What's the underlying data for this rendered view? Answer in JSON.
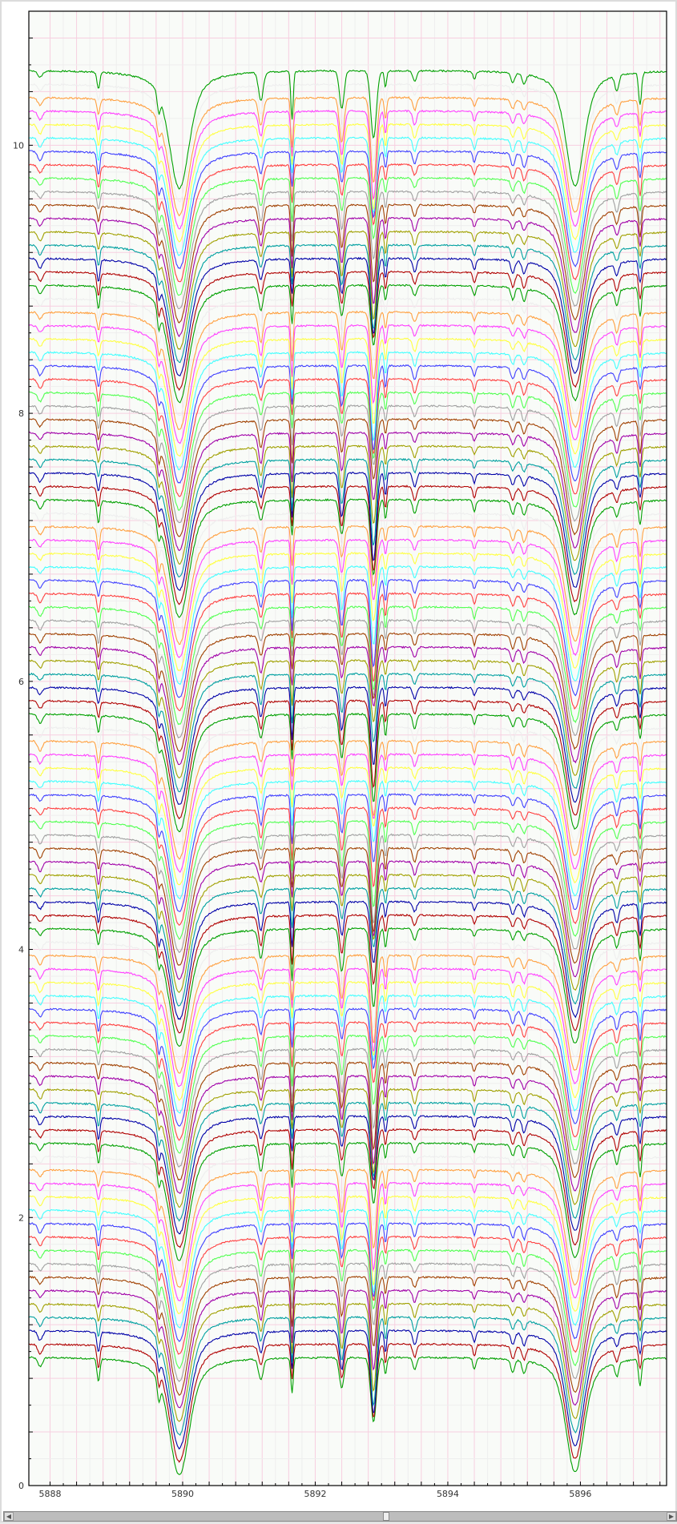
{
  "chart_data": {
    "type": "line",
    "title": "",
    "xlabel": "",
    "ylabel": "",
    "xlim": [
      5887.68,
      5897.3
    ],
    "ylim": [
      0,
      11
    ],
    "x_ticks": [
      "5888",
      "5890",
      "5892",
      "5894",
      "5896"
    ],
    "y_ticks": [
      "0",
      "2",
      "4",
      "6",
      "8",
      "10"
    ],
    "grid": true,
    "legend": "none",
    "series_count": 97,
    "series_offset_start": 0.96,
    "series_offset_step": 0.1,
    "continuum_level": 1.0,
    "color_cycle": [
      "#00a000",
      "#b00000",
      "#0000a8",
      "#00a0a0",
      "#a0a000",
      "#a000a8",
      "#a04000",
      "#a0a0a0",
      "#50ff50",
      "#ff4040",
      "#4040ff",
      "#40ffff",
      "#ffff40",
      "#ff40ff",
      "#ffa040",
      "#eeeeee"
    ],
    "absorption_lines": [
      {
        "wavelength": 5887.85,
        "depth": 0.06,
        "width": 0.05
      },
      {
        "wavelength": 5888.73,
        "depth": 0.14,
        "width": 0.03
      },
      {
        "wavelength": 5889.64,
        "depth": 0.12,
        "width": 0.03
      },
      {
        "wavelength": 5889.95,
        "depth": 0.88,
        "width": 0.22
      },
      {
        "wavelength": 5891.18,
        "depth": 0.18,
        "width": 0.05
      },
      {
        "wavelength": 5891.65,
        "depth": 0.32,
        "width": 0.025
      },
      {
        "wavelength": 5892.4,
        "depth": 0.28,
        "width": 0.05
      },
      {
        "wavelength": 5892.88,
        "depth": 0.55,
        "width": 0.06
      },
      {
        "wavelength": 5893.06,
        "depth": 0.14,
        "width": 0.025
      },
      {
        "wavelength": 5893.5,
        "depth": 0.09,
        "width": 0.04
      },
      {
        "wavelength": 5894.4,
        "depth": 0.07,
        "width": 0.03
      },
      {
        "wavelength": 5894.98,
        "depth": 0.08,
        "width": 0.04
      },
      {
        "wavelength": 5895.15,
        "depth": 0.08,
        "width": 0.04
      },
      {
        "wavelength": 5895.92,
        "depth": 0.86,
        "width": 0.2
      },
      {
        "wavelength": 5896.55,
        "depth": 0.1,
        "width": 0.04
      },
      {
        "wavelength": 5896.9,
        "depth": 0.2,
        "width": 0.03
      }
    ]
  },
  "scrollbar": {
    "left_arrow": "◀",
    "right_arrow": "▶",
    "position": 0.57
  }
}
